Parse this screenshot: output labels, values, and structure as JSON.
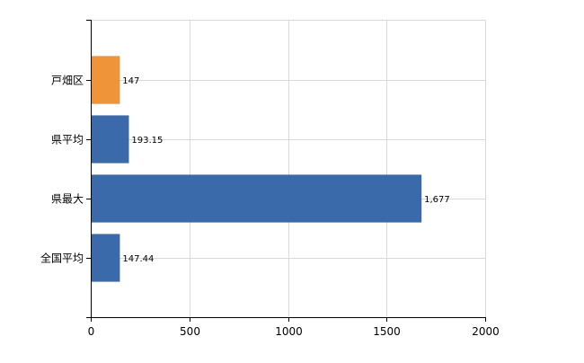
{
  "chart_data": {
    "type": "bar",
    "orientation": "horizontal",
    "categories": [
      "戸畑区",
      "県平均",
      "県最大",
      "全国平均"
    ],
    "values": [
      147,
      193.15,
      1677,
      147.44
    ],
    "value_labels": [
      "147",
      "193.15",
      "1,677",
      "147.44"
    ],
    "bar_colors": [
      "#F0943A",
      "#3A6AAA",
      "#3A6AAA",
      "#3A6AAA"
    ],
    "xlim": [
      0,
      2000
    ],
    "xticks": [
      0,
      500,
      1000,
      1500,
      2000
    ],
    "xtick_labels": [
      "0",
      "500",
      "1000",
      "1500",
      "2000"
    ],
    "grid": true,
    "title": "",
    "xlabel": "",
    "ylabel": ""
  },
  "colors": {
    "highlight": "#F0943A",
    "default": "#3A6AAA",
    "grid": "#D9D9D9",
    "axis": "#000000"
  }
}
